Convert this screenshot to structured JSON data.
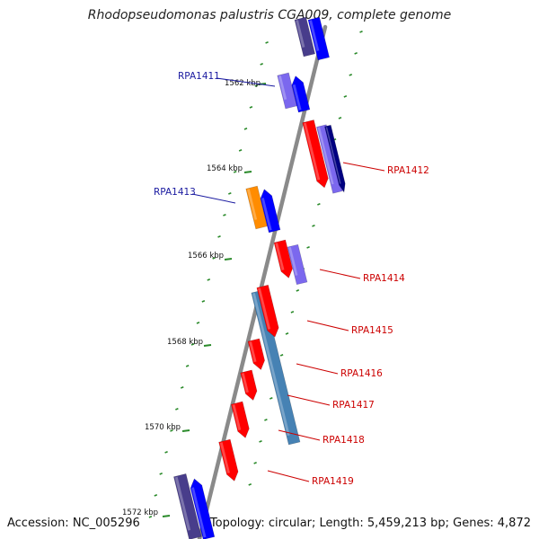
{
  "title": "Rhodopseudomonas palustris CGA009, complete genome",
  "footer": {
    "accession": "Accession: NC_005296",
    "summary": "Topology: circular; Length: 5,459,213 bp; Genes: 4,872"
  },
  "colors": {
    "backbone": "#8a8a8a",
    "tick": "#2a8a2a",
    "label_left": "#1a1aa0",
    "label_right": "#cc0000",
    "gene_red": "#ff0000",
    "gene_blue": "#0000ff",
    "gene_purple": "#7b68ee",
    "gene_darkpurple": "#483d8b",
    "gene_navy": "#000080",
    "gene_steel": "#4682b4",
    "gene_orange": "#ff8c00"
  },
  "diagram": {
    "scale_labels": [
      {
        "label": "1562 kbp",
        "kbp": 1562
      },
      {
        "label": "1564 kbp",
        "kbp": 1564
      },
      {
        "label": "1566 kbp",
        "kbp": 1566
      },
      {
        "label": "1568 kbp",
        "kbp": 1568
      },
      {
        "label": "1570 kbp",
        "kbp": 1570
      },
      {
        "label": "1572 kbp",
        "kbp": 1572
      }
    ],
    "gene_labels": [
      {
        "id": "g1411",
        "label": "RPA1411",
        "side": "left"
      },
      {
        "id": "g1412",
        "label": "RPA1412",
        "side": "right"
      },
      {
        "id": "g1413",
        "label": "RPA1413",
        "side": "left"
      },
      {
        "id": "g1414",
        "label": "RPA1414",
        "side": "right"
      },
      {
        "id": "g1415",
        "label": "RPA1415",
        "side": "right"
      },
      {
        "id": "g1416",
        "label": "RPA1416",
        "side": "right"
      },
      {
        "id": "g1417",
        "label": "RPA1417",
        "side": "right"
      },
      {
        "id": "g1418",
        "label": "RPA1418",
        "side": "right"
      },
      {
        "id": "g1419",
        "label": "RPA1419",
        "side": "right"
      }
    ]
  }
}
